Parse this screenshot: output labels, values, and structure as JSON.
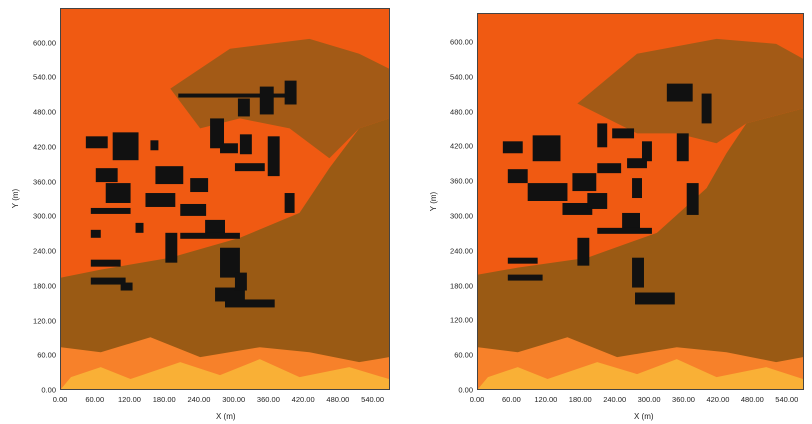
{
  "maps": [
    {
      "id": "left",
      "xlabel": "X (m)",
      "ylabel": "Y (m)",
      "x_ticks": [
        "0.00",
        "60.00",
        "120.00",
        "180.00",
        "240.00",
        "300.00",
        "360.00",
        "420.00",
        "480.00",
        "540.00"
      ],
      "y_ticks": [
        "0.00",
        "60.00",
        "120.00",
        "180.00",
        "240.00",
        "300.00",
        "360.00",
        "420.00",
        "480.00",
        "540.00",
        "600.00"
      ],
      "x_range": [
        0,
        570
      ],
      "y_range": [
        0,
        660
      ]
    },
    {
      "id": "right",
      "xlabel": "X (m)",
      "ylabel": "Y (m)",
      "x_ticks": [
        "0.00",
        "60.00",
        "120.00",
        "180.00",
        "240.00",
        "300.00",
        "360.00",
        "420.00",
        "480.00",
        "540.00"
      ],
      "y_ticks": [
        "0.00",
        "60.00",
        "120.00",
        "180.00",
        "240.00",
        "300.00",
        "360.00",
        "420.00",
        "480.00",
        "540.00",
        "600.00"
      ],
      "x_range": [
        0,
        570
      ],
      "y_range": [
        0,
        650
      ]
    }
  ],
  "colors": {
    "orange": "#f05a12",
    "orange_light": "#f7812a",
    "yellow": "#f9b036",
    "brown": "#9a5a14",
    "brown_dark": "#8a4d10",
    "building": "#111111"
  }
}
